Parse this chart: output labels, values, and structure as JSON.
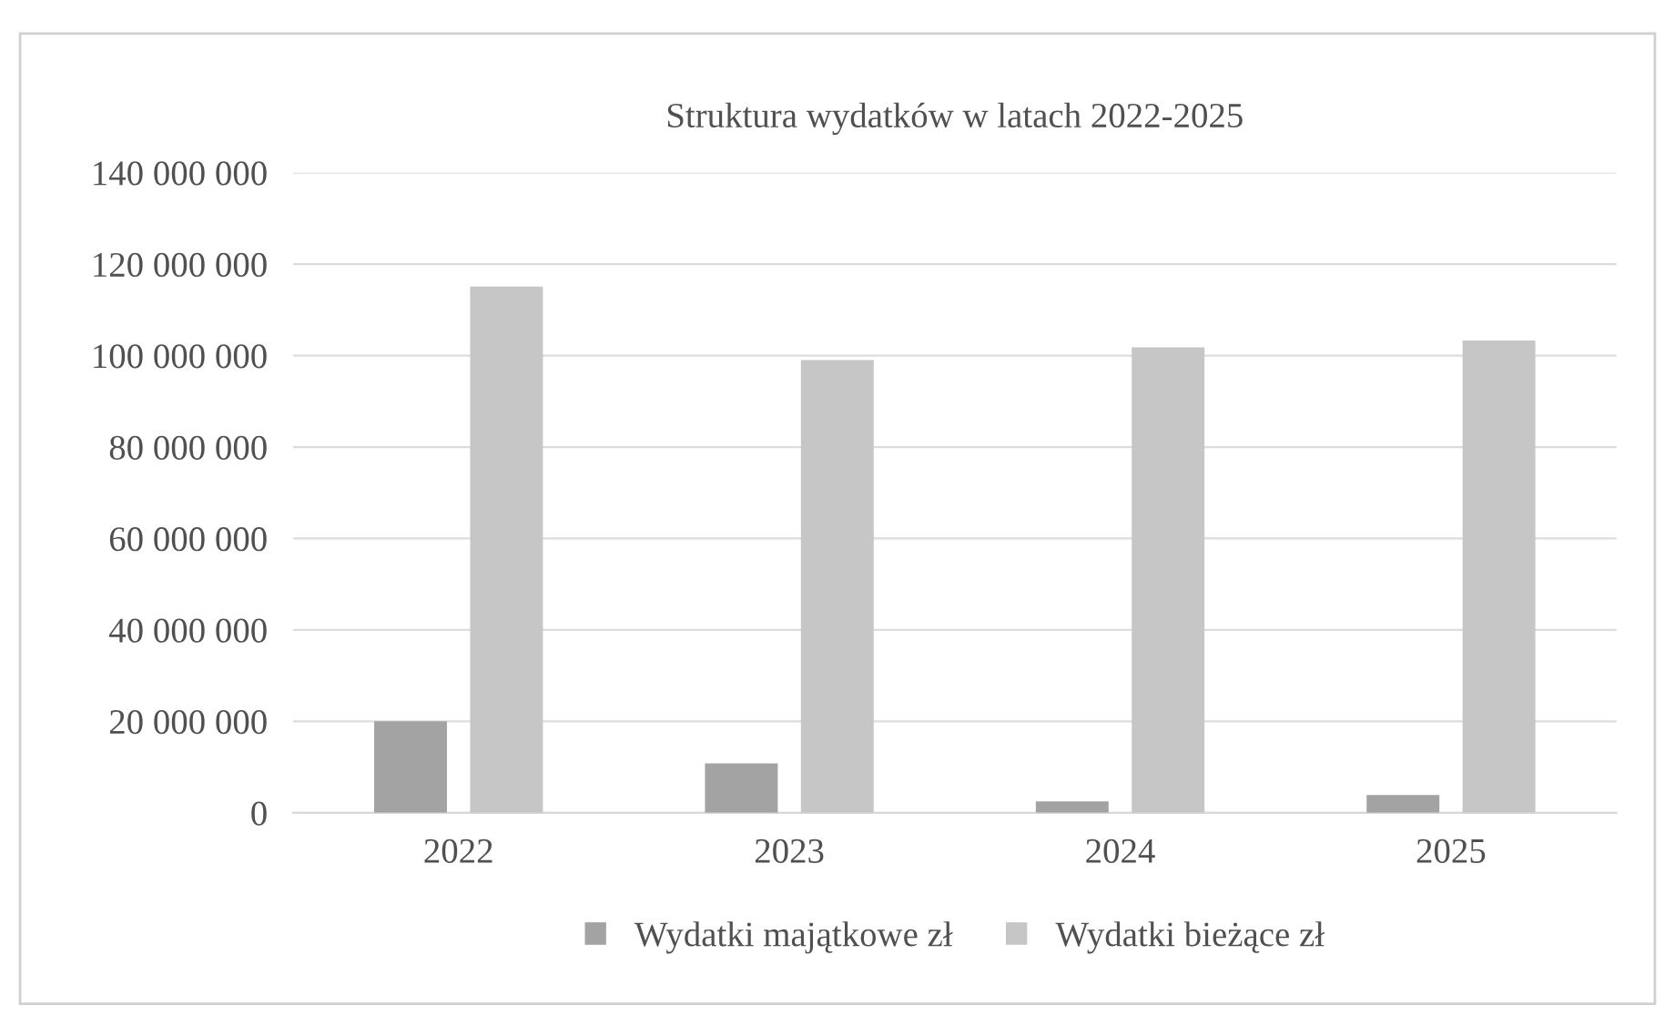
{
  "chart_data": {
    "type": "bar",
    "title": "Struktura wydatków w latach 2022-2025",
    "categories": [
      "2022",
      "2023",
      "2024",
      "2025"
    ],
    "series": [
      {
        "name": "Wydatki majątkowe zł",
        "color": "#a3a3a3",
        "values": [
          20000000,
          10800000,
          2500000,
          3900000
        ]
      },
      {
        "name": "Wydatki bieżące zł",
        "color": "#c6c6c6",
        "values": [
          115100000,
          99000000,
          101800000,
          103300000
        ]
      }
    ],
    "ylim": [
      0,
      140000000
    ],
    "yticks": [
      {
        "value": 0,
        "label": "0"
      },
      {
        "value": 20000000,
        "label": "20 000 000"
      },
      {
        "value": 40000000,
        "label": "40 000 000"
      },
      {
        "value": 60000000,
        "label": "60 000 000"
      },
      {
        "value": 80000000,
        "label": "80 000 000"
      },
      {
        "value": 100000000,
        "label": "100 000 000"
      },
      {
        "value": 120000000,
        "label": "120 000 000"
      },
      {
        "value": 140000000,
        "label": "140 000 000"
      }
    ],
    "grid": "y",
    "legend": "bottom"
  }
}
